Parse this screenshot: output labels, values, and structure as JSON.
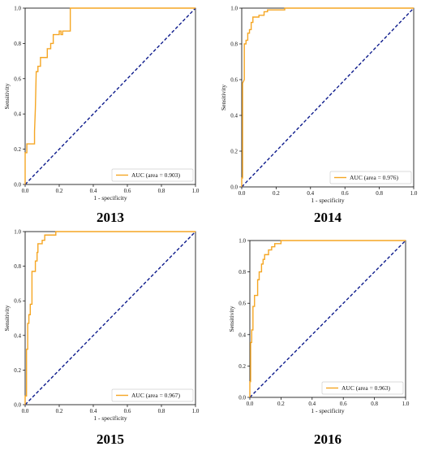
{
  "chart_data": [
    {
      "type": "line",
      "title": "2013",
      "xlabel": "1 - specificity",
      "ylabel": "Sensitivity",
      "xlim": [
        0,
        1
      ],
      "ylim": [
        0,
        1
      ],
      "xticks": [
        "0.0",
        "0.2",
        "0.4",
        "0.6",
        "0.8",
        "1.0"
      ],
      "yticks": [
        "0.0",
        "0.2",
        "0.4",
        "0.6",
        "0.8",
        "1.0"
      ],
      "legend_position": "bottom-right",
      "roc_color": "#f5a623",
      "chance_color": "#0d1b8c",
      "series": [
        {
          "name": "AUC (area = 0.903)",
          "points": [
            [
              0,
              0
            ],
            [
              0,
              0.18
            ],
            [
              0.01,
              0.18
            ],
            [
              0.01,
              0.23
            ],
            [
              0.055,
              0.23
            ],
            [
              0.055,
              0.3
            ],
            [
              0.06,
              0.43
            ],
            [
              0.065,
              0.64
            ],
            [
              0.075,
              0.64
            ],
            [
              0.075,
              0.67
            ],
            [
              0.09,
              0.67
            ],
            [
              0.09,
              0.72
            ],
            [
              0.13,
              0.72
            ],
            [
              0.13,
              0.77
            ],
            [
              0.15,
              0.77
            ],
            [
              0.15,
              0.8
            ],
            [
              0.165,
              0.8
            ],
            [
              0.165,
              0.85
            ],
            [
              0.2,
              0.85
            ],
            [
              0.2,
              0.87
            ],
            [
              0.21,
              0.87
            ],
            [
              0.21,
              0.85
            ],
            [
              0.22,
              0.85
            ],
            [
              0.22,
              0.87
            ],
            [
              0.265,
              0.87
            ],
            [
              0.265,
              1.0
            ],
            [
              1,
              1
            ]
          ]
        },
        {
          "name": "",
          "points": [
            [
              0,
              0
            ],
            [
              1,
              1
            ]
          ]
        }
      ]
    },
    {
      "type": "line",
      "title": "2014",
      "xlabel": "1 - specificity",
      "ylabel": "Sensitivity",
      "xlim": [
        0,
        1
      ],
      "ylim": [
        0,
        1
      ],
      "xticks": [
        "0.0",
        "0.2",
        "0.4",
        "0.6",
        "0.8",
        "1.0"
      ],
      "yticks": [
        "0.0",
        "0.2",
        "0.4",
        "0.6",
        "0.8",
        "1.0"
      ],
      "legend_position": "bottom-right",
      "roc_color": "#f5a623",
      "chance_color": "#0d1b8c",
      "series": [
        {
          "name": "AUC (area = 0.976)",
          "points": [
            [
              0,
              0
            ],
            [
              0,
              0.05
            ],
            [
              0.005,
              0.05
            ],
            [
              0.005,
              0.58
            ],
            [
              0.015,
              0.6
            ],
            [
              0.015,
              0.8
            ],
            [
              0.025,
              0.8
            ],
            [
              0.025,
              0.82
            ],
            [
              0.035,
              0.82
            ],
            [
              0.035,
              0.86
            ],
            [
              0.045,
              0.86
            ],
            [
              0.045,
              0.88
            ],
            [
              0.055,
              0.88
            ],
            [
              0.055,
              0.92
            ],
            [
              0.065,
              0.92
            ],
            [
              0.065,
              0.95
            ],
            [
              0.1,
              0.95
            ],
            [
              0.1,
              0.96
            ],
            [
              0.13,
              0.96
            ],
            [
              0.13,
              0.98
            ],
            [
              0.15,
              0.98
            ],
            [
              0.15,
              0.99
            ],
            [
              0.25,
              0.99
            ],
            [
              0.25,
              1.0
            ],
            [
              1,
              1
            ]
          ]
        },
        {
          "name": "",
          "points": [
            [
              0,
              0
            ],
            [
              1,
              1
            ]
          ]
        }
      ]
    },
    {
      "type": "line",
      "title": "2015",
      "xlabel": "1 - specificity",
      "ylabel": "Sensitivity",
      "xlim": [
        0,
        1
      ],
      "ylim": [
        0,
        1
      ],
      "xticks": [
        "0.0",
        "0.2",
        "0.4",
        "0.6",
        "0.8",
        "1.0"
      ],
      "yticks": [
        "0.0",
        "0.2",
        "0.4",
        "0.6",
        "0.8",
        "1.0"
      ],
      "legend_position": "bottom-right",
      "roc_color": "#f5a623",
      "chance_color": "#0d1b8c",
      "series": [
        {
          "name": "AUC (area = 0.967)",
          "points": [
            [
              0,
              0
            ],
            [
              0,
              0.05
            ],
            [
              0.008,
              0.05
            ],
            [
              0.008,
              0.32
            ],
            [
              0.015,
              0.32
            ],
            [
              0.015,
              0.47
            ],
            [
              0.022,
              0.47
            ],
            [
              0.022,
              0.52
            ],
            [
              0.03,
              0.52
            ],
            [
              0.03,
              0.58
            ],
            [
              0.04,
              0.58
            ],
            [
              0.04,
              0.77
            ],
            [
              0.06,
              0.77
            ],
            [
              0.06,
              0.83
            ],
            [
              0.07,
              0.83
            ],
            [
              0.07,
              0.88
            ],
            [
              0.075,
              0.88
            ],
            [
              0.075,
              0.93
            ],
            [
              0.1,
              0.93
            ],
            [
              0.1,
              0.95
            ],
            [
              0.115,
              0.95
            ],
            [
              0.115,
              0.98
            ],
            [
              0.18,
              0.98
            ],
            [
              0.18,
              1.0
            ],
            [
              1,
              1
            ]
          ]
        },
        {
          "name": "",
          "points": [
            [
              0,
              0
            ],
            [
              1,
              1
            ]
          ]
        }
      ]
    },
    {
      "type": "line",
      "title": "2016",
      "xlabel": "1 - specificity",
      "ylabel": "Sensitivity",
      "xlim": [
        0,
        1
      ],
      "ylim": [
        0,
        1
      ],
      "xticks": [
        "0.0",
        "0.2",
        "0.4",
        "0.6",
        "0.8",
        "1.0"
      ],
      "yticks": [
        "0.0",
        "0.2",
        "0.4",
        "0.6",
        "0.8",
        "1.0"
      ],
      "legend_position": "bottom-right",
      "roc_color": "#f5a623",
      "chance_color": "#0d1b8c",
      "series": [
        {
          "name": "AUC (area = 0.963)",
          "points": [
            [
              0,
              0
            ],
            [
              0,
              0.1
            ],
            [
              0.005,
              0.1
            ],
            [
              0.005,
              0.35
            ],
            [
              0.012,
              0.35
            ],
            [
              0.012,
              0.43
            ],
            [
              0.02,
              0.43
            ],
            [
              0.02,
              0.58
            ],
            [
              0.03,
              0.58
            ],
            [
              0.03,
              0.65
            ],
            [
              0.05,
              0.65
            ],
            [
              0.05,
              0.75
            ],
            [
              0.06,
              0.75
            ],
            [
              0.06,
              0.8
            ],
            [
              0.075,
              0.8
            ],
            [
              0.075,
              0.85
            ],
            [
              0.085,
              0.85
            ],
            [
              0.085,
              0.88
            ],
            [
              0.095,
              0.88
            ],
            [
              0.095,
              0.91
            ],
            [
              0.12,
              0.91
            ],
            [
              0.12,
              0.94
            ],
            [
              0.14,
              0.94
            ],
            [
              0.14,
              0.96
            ],
            [
              0.16,
              0.96
            ],
            [
              0.16,
              0.98
            ],
            [
              0.2,
              0.98
            ],
            [
              0.2,
              1.0
            ],
            [
              1,
              1
            ]
          ]
        },
        {
          "name": "",
          "points": [
            [
              0,
              0
            ],
            [
              1,
              1
            ]
          ]
        }
      ]
    }
  ]
}
